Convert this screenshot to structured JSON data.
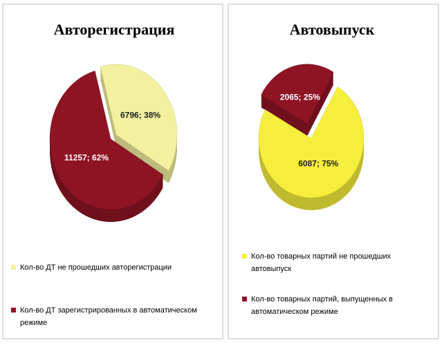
{
  "chart_data": [
    {
      "type": "pie",
      "title": "Авторегистрация",
      "categories": [
        "Кол-во ДТ не прошедших авторегистрации",
        "Кол-во ДТ зарегистрированных в автоматическом режиме"
      ],
      "values": [
        6796,
        11257
      ],
      "value_labels": [
        "6796; 38%",
        "11257; 62%"
      ],
      "colors": [
        "#f3f0a0",
        "#8e1424"
      ]
    },
    {
      "type": "pie",
      "title": "Автовыпуск",
      "categories": [
        "Кол-во товарных партий не прошедших автовыпуск",
        "Кол-во товарных партий, выпущенных в автоматическом режиме"
      ],
      "values": [
        6087,
        2065
      ],
      "value_labels": [
        "6087; 75%",
        "2065; 25%"
      ],
      "colors": [
        "#f6ee3c",
        "#8e1424"
      ]
    }
  ]
}
